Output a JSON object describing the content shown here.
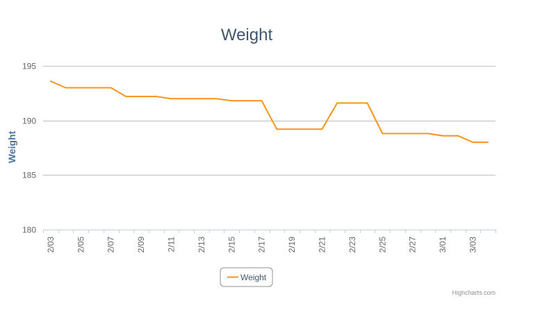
{
  "chart_data": {
    "type": "line",
    "title": "Weight",
    "ylabel": "Weight",
    "xlabel": "",
    "ylim": [
      180,
      195
    ],
    "yticks": [
      180,
      185,
      190,
      195
    ],
    "grid": true,
    "legend_position": "bottom-center",
    "x_tick_labels": [
      "2/03",
      "2/05",
      "2/07",
      "2/09",
      "2/11",
      "2/13",
      "2/15",
      "2/17",
      "2/19",
      "2/21",
      "2/23",
      "2/25",
      "2/27",
      "3/01",
      "3/03"
    ],
    "x": [
      "2/03",
      "2/04",
      "2/05",
      "2/06",
      "2/07",
      "2/08",
      "2/09",
      "2/10",
      "2/11",
      "2/12",
      "2/13",
      "2/14",
      "2/15",
      "2/16",
      "2/17",
      "2/18",
      "2/19",
      "2/20",
      "2/21",
      "2/22",
      "2/23",
      "2/24",
      "2/25",
      "2/26",
      "2/27",
      "2/28",
      "3/01",
      "3/02",
      "3/03",
      "3/04"
    ],
    "series": [
      {
        "name": "Weight",
        "color": "#f7941d",
        "values": [
          193.6,
          193.0,
          193.0,
          193.0,
          193.0,
          192.2,
          192.2,
          192.2,
          192.0,
          192.0,
          192.0,
          192.0,
          191.8,
          191.8,
          191.8,
          189.2,
          189.2,
          189.2,
          189.2,
          191.6,
          191.6,
          191.6,
          188.8,
          188.8,
          188.8,
          188.8,
          188.6,
          188.6,
          188.0,
          188.0
        ]
      }
    ]
  },
  "credits": "Highcharts.com"
}
